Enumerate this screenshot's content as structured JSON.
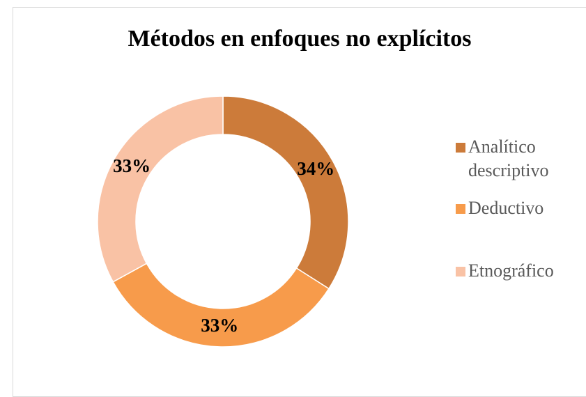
{
  "chart_data": {
    "type": "donut",
    "title": "Métodos en enfoques no explícitos",
    "categories": [
      "Analítico descriptivo",
      "Deductivo",
      "Etnográfico"
    ],
    "values": [
      34,
      33,
      33
    ],
    "value_labels": [
      "34%",
      "33%",
      "33%"
    ],
    "colors": [
      "#cc7b3a",
      "#f79b4b",
      "#f9c2a5"
    ],
    "legend": "right"
  }
}
